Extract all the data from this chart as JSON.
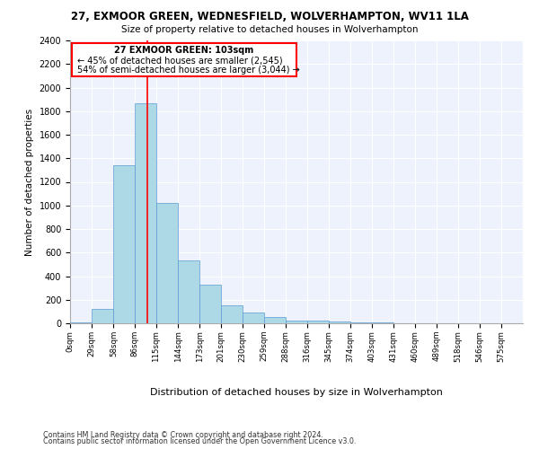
{
  "title1": "27, EXMOOR GREEN, WEDNESFIELD, WOLVERHAMPTON, WV11 1LA",
  "title2": "Size of property relative to detached houses in Wolverhampton",
  "xlabel": "Distribution of detached houses by size in Wolverhampton",
  "ylabel": "Number of detached properties",
  "footer1": "Contains HM Land Registry data © Crown copyright and database right 2024.",
  "footer2": "Contains public sector information licensed under the Open Government Licence v3.0.",
  "annotation_line1": "27 EXMOOR GREEN: 103sqm",
  "annotation_line2": "← 45% of detached houses are smaller (2,545)",
  "annotation_line3": "54% of semi-detached houses are larger (3,044) →",
  "bar_color": "#add8e6",
  "bar_edge_color": "#5b9bd5",
  "background_color": "#eef2fc",
  "red_line_x": 103,
  "categories": [
    "0sqm",
    "29sqm",
    "58sqm",
    "86sqm",
    "115sqm",
    "144sqm",
    "173sqm",
    "201sqm",
    "230sqm",
    "259sqm",
    "288sqm",
    "316sqm",
    "345sqm",
    "374sqm",
    "403sqm",
    "431sqm",
    "460sqm",
    "489sqm",
    "518sqm",
    "546sqm",
    "575sqm"
  ],
  "bin_edges": [
    0,
    29,
    58,
    86,
    115,
    144,
    173,
    201,
    230,
    259,
    288,
    316,
    345,
    374,
    403,
    431,
    460,
    489,
    518,
    546,
    575,
    604
  ],
  "values": [
    10,
    120,
    1340,
    1870,
    1020,
    530,
    330,
    155,
    95,
    50,
    25,
    20,
    15,
    10,
    5,
    2,
    1,
    0,
    2,
    0,
    1
  ],
  "ylim": [
    0,
    2400
  ],
  "yticks": [
    0,
    200,
    400,
    600,
    800,
    1000,
    1200,
    1400,
    1600,
    1800,
    2000,
    2200,
    2400
  ]
}
